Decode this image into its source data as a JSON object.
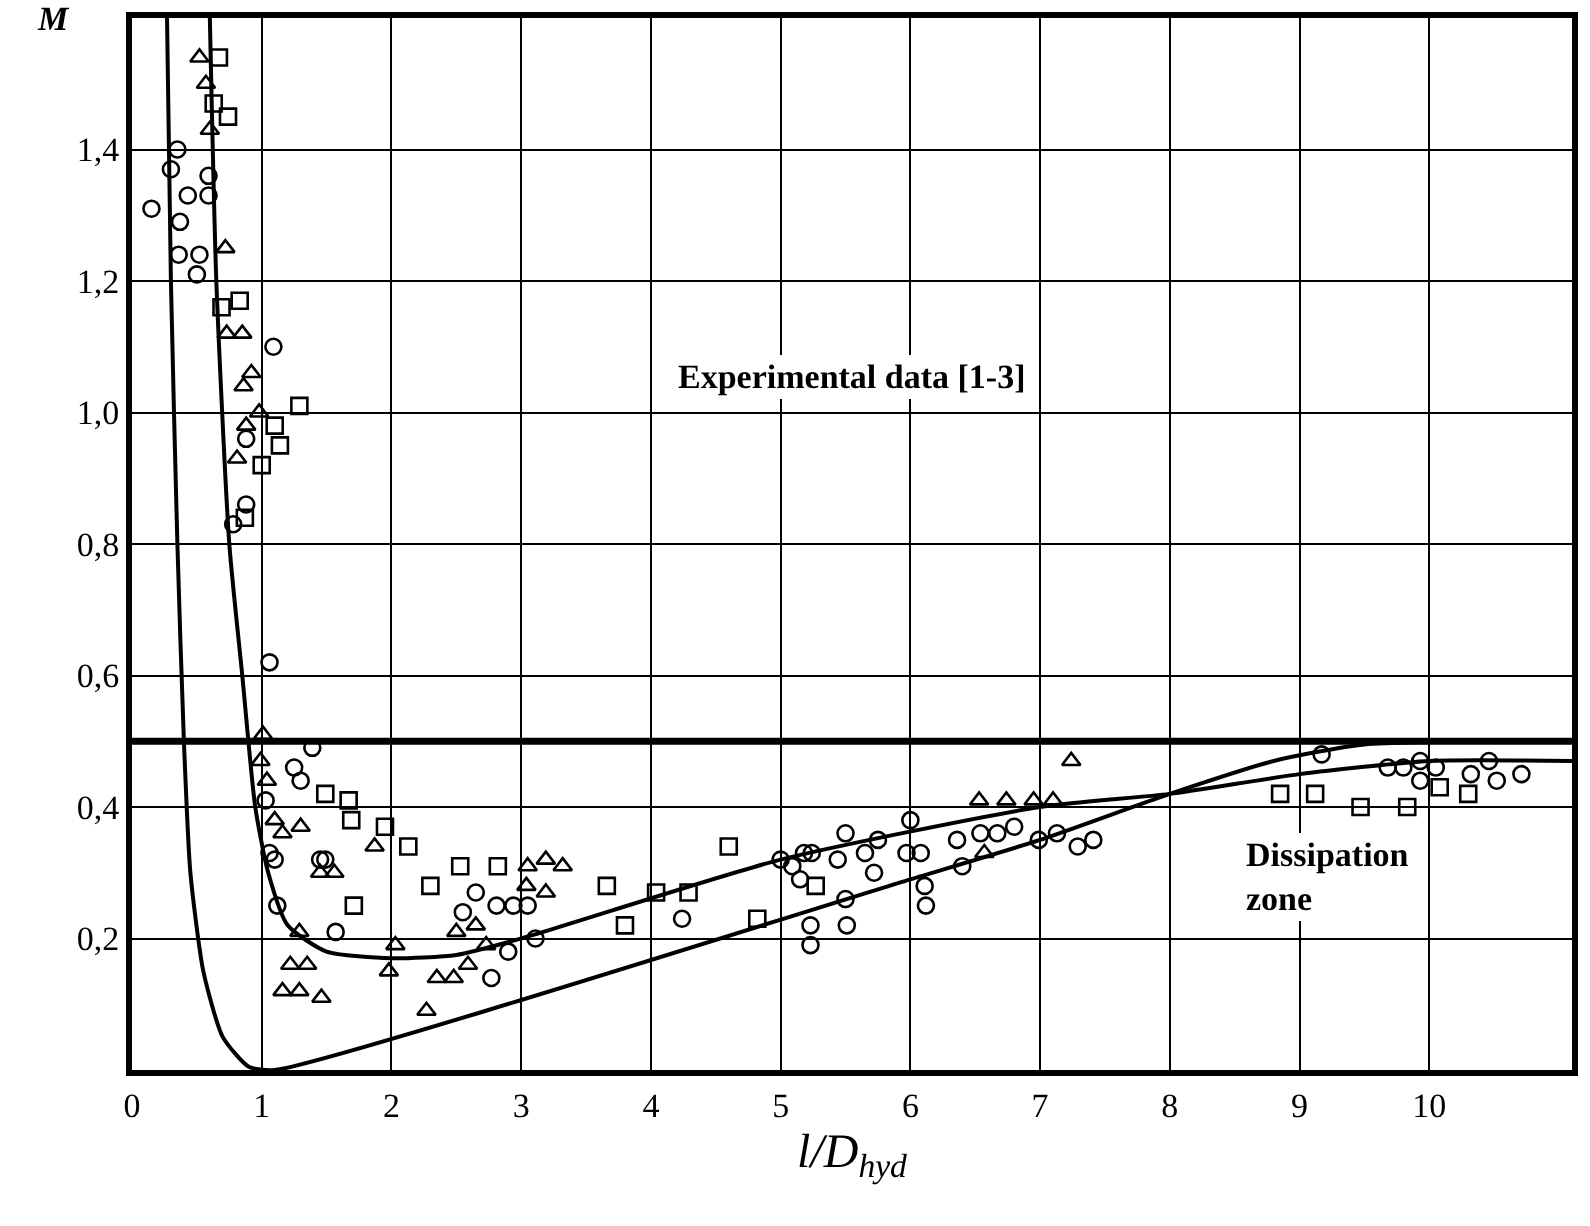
{
  "chart_data": {
    "type": "scatter",
    "xlabel": "l/D$_{hyd}$",
    "ylabel": "M",
    "xlim": [
      0,
      11.1
    ],
    "ylim": [
      0,
      1.6
    ],
    "xticks": [
      0,
      1,
      2,
      3,
      4,
      5,
      6,
      7,
      8,
      9,
      10
    ],
    "yticks": [
      {
        "value": 0.2,
        "label": "0,2"
      },
      {
        "value": 0.4,
        "label": "0,4"
      },
      {
        "value": 0.6,
        "label": "0,6"
      },
      {
        "value": 0.8,
        "label": "0,8"
      },
      {
        "value": 1.0,
        "label": "1,0"
      },
      {
        "value": 1.2,
        "label": "1,2"
      },
      {
        "value": 1.4,
        "label": "1,4"
      }
    ],
    "grid": true,
    "annotations": [
      "Experimental data [1-3]",
      "Dissipation\nzone"
    ],
    "ref_lines": [
      {
        "axis": "y",
        "value": 0.5,
        "label": null,
        "color": "#000000"
      }
    ],
    "series": [
      {
        "marker": "circle",
        "color": "#000000",
        "x": [
          0.35,
          0.3,
          0.15,
          0.37,
          0.43,
          0.59,
          0.59,
          0.36,
          0.52,
          0.5,
          1.09,
          0.88,
          0.88,
          0.78,
          1.06,
          1.39,
          1.25,
          1.3,
          1.03,
          1.1,
          1.49,
          1.06,
          1.45,
          1.12,
          1.57,
          2.55,
          2.65,
          2.81,
          2.94,
          2.77,
          2.9,
          3.11,
          3.05,
          4.24,
          5.0,
          5.18,
          5.15,
          5.23,
          5.23,
          5.5,
          5.51,
          5.44,
          5.65,
          5.72,
          5.97,
          6.11,
          6.12,
          6.4,
          7.29,
          5.09,
          5.24,
          5.5,
          5.75,
          6.0,
          6.08,
          6.36,
          6.54,
          6.67,
          6.8,
          6.99,
          7.13,
          7.41,
          9.17,
          9.68,
          9.8,
          9.93,
          10.05,
          9.93,
          10.32,
          10.46,
          10.52,
          10.71
        ],
        "values": [
          1.4,
          1.37,
          1.31,
          1.29,
          1.33,
          1.36,
          1.33,
          1.24,
          1.24,
          1.21,
          1.1,
          0.96,
          0.86,
          0.83,
          0.62,
          0.49,
          0.46,
          0.44,
          0.41,
          0.32,
          0.32,
          0.33,
          0.32,
          0.25,
          0.21,
          0.24,
          0.27,
          0.25,
          0.25,
          0.14,
          0.18,
          0.2,
          0.25,
          0.23,
          0.32,
          0.33,
          0.29,
          0.22,
          0.19,
          0.26,
          0.22,
          0.32,
          0.33,
          0.3,
          0.33,
          0.28,
          0.25,
          0.31,
          0.34,
          0.31,
          0.33,
          0.36,
          0.35,
          0.38,
          0.33,
          0.35,
          0.36,
          0.36,
          0.37,
          0.35,
          0.36,
          0.35,
          0.48,
          0.46,
          0.46,
          0.47,
          0.46,
          0.44,
          0.45,
          0.47,
          0.44,
          0.45
        ]
      },
      {
        "marker": "triangle",
        "color": "#000000",
        "x": [
          0.52,
          0.57,
          0.6,
          0.72,
          0.73,
          0.85,
          0.92,
          0.86,
          0.88,
          0.98,
          0.81,
          1.01,
          0.99,
          1.04,
          1.1,
          1.3,
          1.16,
          1.87,
          1.45,
          1.56,
          1.29,
          1.22,
          1.35,
          1.16,
          1.29,
          1.46,
          2.03,
          1.98,
          2.35,
          2.48,
          2.27,
          2.5,
          2.65,
          2.73,
          2.59,
          3.05,
          3.19,
          3.32,
          3.04,
          3.19,
          6.57,
          6.53,
          6.74,
          6.95,
          7.1,
          7.24
        ],
        "values": [
          1.54,
          1.5,
          1.43,
          1.25,
          1.12,
          1.12,
          1.06,
          1.04,
          0.98,
          1.0,
          0.93,
          0.51,
          0.47,
          0.44,
          0.38,
          0.37,
          0.36,
          0.34,
          0.3,
          0.3,
          0.21,
          0.16,
          0.16,
          0.12,
          0.12,
          0.11,
          0.19,
          0.15,
          0.14,
          0.14,
          0.09,
          0.21,
          0.22,
          0.19,
          0.16,
          0.31,
          0.32,
          0.31,
          0.28,
          0.27,
          0.33,
          0.41,
          0.41,
          0.41,
          0.41,
          0.47
        ]
      },
      {
        "marker": "square",
        "color": "#000000",
        "x": [
          0.67,
          0.63,
          0.74,
          0.83,
          0.69,
          1.29,
          1.1,
          1.14,
          1.0,
          0.87,
          1.49,
          1.67,
          1.69,
          1.95,
          2.13,
          1.71,
          2.3,
          2.53,
          2.82,
          3.66,
          3.8,
          4.04,
          4.29,
          4.82,
          4.6,
          5.27,
          8.85,
          9.12,
          9.47,
          9.83,
          10.3,
          10.08
        ],
        "values": [
          1.54,
          1.47,
          1.45,
          1.17,
          1.16,
          1.01,
          0.98,
          0.95,
          0.92,
          0.84,
          0.42,
          0.41,
          0.38,
          0.37,
          0.34,
          0.25,
          0.28,
          0.31,
          0.31,
          0.28,
          0.22,
          0.27,
          0.27,
          0.23,
          0.34,
          0.28,
          0.42,
          0.42,
          0.4,
          0.4,
          0.42,
          0.43
        ]
      },
      {
        "type": "line",
        "marker": "none",
        "line_style": "solid",
        "color": "#000000",
        "x": [
          0.27,
          0.3,
          0.35,
          0.4,
          0.45,
          0.55,
          0.7,
          0.9,
          1.1,
          6.0,
          7.0,
          8.0,
          8.8,
          9.5,
          11.1
        ],
        "values": [
          1.6,
          1.2,
          0.8,
          0.5,
          0.3,
          0.15,
          0.05,
          0.005,
          0.0,
          0.29,
          0.35,
          0.42,
          0.47,
          0.495,
          0.5
        ]
      },
      {
        "type": "line",
        "marker": "none",
        "line_style": "solid",
        "color": "#000000",
        "x": [
          0.6,
          0.65,
          0.75,
          0.85,
          0.95,
          1.05,
          1.2,
          1.5,
          2.0,
          2.5,
          3.0,
          5.0,
          7.0,
          8.0,
          9.0,
          10.0,
          11.1
        ],
        "values": [
          1.6,
          1.2,
          0.8,
          0.6,
          0.4,
          0.3,
          0.22,
          0.18,
          0.17,
          0.175,
          0.2,
          0.32,
          0.4,
          0.42,
          0.45,
          0.47,
          0.47
        ]
      }
    ]
  }
}
